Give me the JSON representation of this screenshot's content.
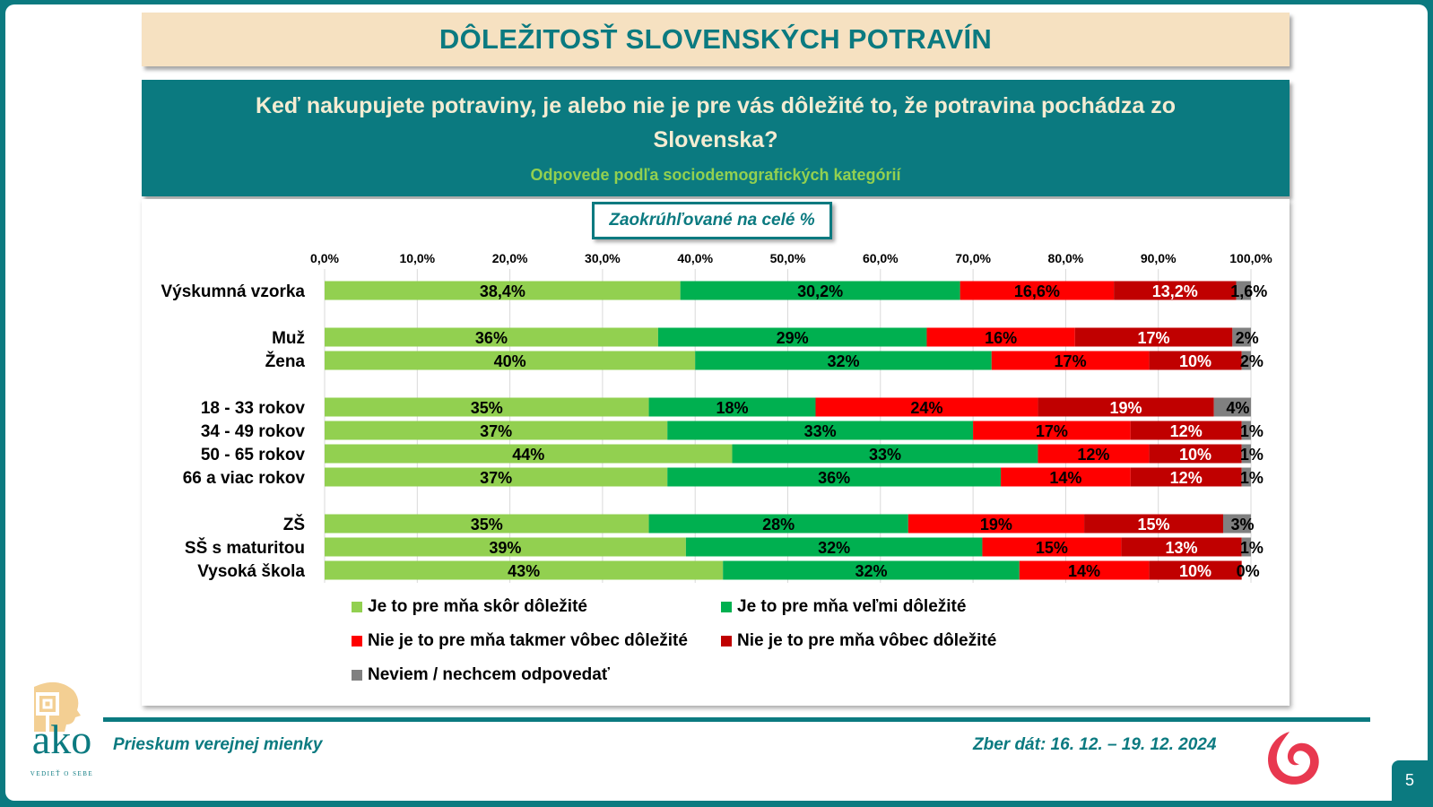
{
  "title": "DÔLEŽITOSŤ SLOVENSKÝCH POTRAVÍN",
  "question": "Keď nakupujete potraviny, je alebo nie je pre vás dôležité to, že potravina pochádza zo Slovenska?",
  "subtitle": "Odpovede podľa sociodemografických kategórií",
  "note": "Zaokrúhľované na celé %",
  "footer": {
    "left": "Prieskum verejnej mienky",
    "right": "Zber dát: 16. 12. – 19. 12. 2024",
    "page_number": "5",
    "logo_text": "ako",
    "logo_tagline": "VEDIEŤ O SEBE"
  },
  "chart_data": {
    "type": "bar",
    "orientation": "horizontal-stacked-100",
    "title": "DÔLEŽITOSŤ SLOVENSKÝCH POTRAVÍN",
    "xlabel": "",
    "ylabel": "",
    "xlim": [
      0,
      100
    ],
    "x_ticks": [
      "0,0%",
      "10,0%",
      "20,0%",
      "30,0%",
      "40,0%",
      "50,0%",
      "60,0%",
      "70,0%",
      "80,0%",
      "90,0%",
      "100,0%"
    ],
    "x_tick_position": "top",
    "grid": true,
    "legend_position": "bottom",
    "categories": [
      "Výskumná vzorka",
      "Muž",
      "Žena",
      "18 - 33 rokov",
      "34 - 49 rokov",
      "50 - 65 rokov",
      "66 a viac rokov",
      "ZŠ",
      "SŠ s maturitou",
      "Vysoká škola"
    ],
    "groups": [
      [
        0
      ],
      [
        1,
        2
      ],
      [
        3,
        4,
        5,
        6
      ],
      [
        7,
        8,
        9
      ]
    ],
    "series": [
      {
        "name": "Je to pre mňa skôr dôležité",
        "color": "#92d050",
        "label_color": "#000000",
        "values": [
          38.4,
          36,
          40,
          35,
          37,
          44,
          37,
          35,
          39,
          43
        ],
        "labels": [
          "38,4%",
          "36%",
          "40%",
          "35%",
          "37%",
          "44%",
          "37%",
          "35%",
          "39%",
          "43%"
        ]
      },
      {
        "name": "Je to pre mňa veľmi dôležité",
        "color": "#00b050",
        "label_color": "#000000",
        "values": [
          30.2,
          29,
          32,
          18,
          33,
          33,
          36,
          28,
          32,
          32
        ],
        "labels": [
          "30,2%",
          "29%",
          "32%",
          "18%",
          "33%",
          "33%",
          "36%",
          "28%",
          "32%",
          "32%"
        ]
      },
      {
        "name": "Nie je to pre mňa takmer vôbec dôležité",
        "color": "#ff0000",
        "label_color": "#000000",
        "values": [
          16.6,
          16,
          17,
          24,
          17,
          12,
          14,
          19,
          15,
          14
        ],
        "labels": [
          "16,6%",
          "16%",
          "17%",
          "24%",
          "17%",
          "12%",
          "14%",
          "19%",
          "15%",
          "14%"
        ]
      },
      {
        "name": "Nie je to pre mňa vôbec dôležité",
        "color": "#c00000",
        "label_color": "#ffffff",
        "values": [
          13.2,
          17,
          10,
          19,
          12,
          10,
          12,
          15,
          13,
          10
        ],
        "labels": [
          "13,2%",
          "17%",
          "10%",
          "19%",
          "12%",
          "10%",
          "12%",
          "15%",
          "13%",
          "10%"
        ]
      },
      {
        "name": "Neviem / nechcem odpovedať",
        "color": "#808080",
        "label_color": "#000000",
        "values": [
          1.6,
          2,
          2,
          4,
          1,
          1,
          1,
          3,
          1,
          0
        ],
        "labels": [
          "1,6%",
          "2%",
          "2%",
          "4%",
          "1%",
          "1%",
          "1%",
          "3%",
          "1%",
          "0%"
        ]
      }
    ]
  },
  "colors": {
    "teal": "#0b7a80",
    "title_bg": "#f6e1c1",
    "question_text": "#f4ecd2",
    "subtitle_green": "#92d050",
    "swirl_red": "#e8384f"
  }
}
